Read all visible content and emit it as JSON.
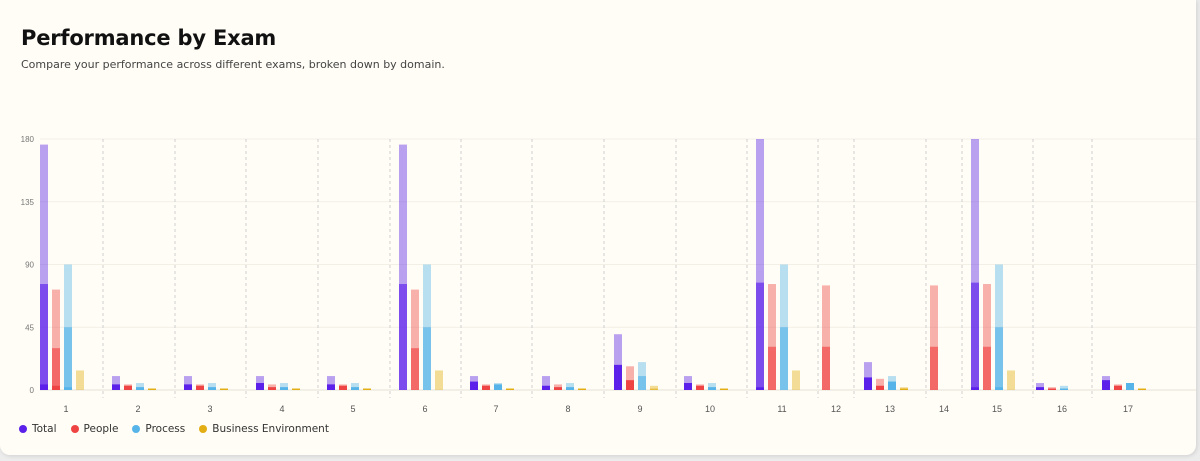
{
  "header": {
    "title": "Performance by Exam",
    "subtitle": "Compare your performance across different exams, broken down by domain."
  },
  "chart_data": {
    "type": "bar",
    "categories": [
      "1",
      "2",
      "3",
      "4",
      "5",
      "6",
      "7",
      "8",
      "9",
      "10",
      "11",
      "12",
      "13",
      "14",
      "15",
      "16",
      "17"
    ],
    "ylim": [
      0,
      180
    ],
    "yticks": [
      0,
      45,
      90,
      135,
      180
    ],
    "grid": true,
    "legend_position": "bottom-left",
    "series": [
      {
        "name": "Total",
        "color": "#5b21ea",
        "values": [
          4,
          4,
          4,
          5,
          4,
          0,
          6,
          3,
          18,
          5,
          2,
          0,
          9,
          0,
          2,
          2,
          7
        ],
        "secondary": [
          76,
          4,
          4,
          5,
          4,
          76,
          6,
          3,
          18,
          5,
          77,
          0,
          9,
          0,
          77,
          2,
          7
        ],
        "tertiary": [
          176,
          10,
          10,
          10,
          10,
          176,
          10,
          10,
          40,
          10,
          180,
          0,
          20,
          0,
          180,
          5,
          10
        ]
      },
      {
        "name": "People",
        "color": "#ef4444",
        "values": [
          3,
          3,
          3,
          2,
          3,
          0,
          3,
          2,
          7,
          3,
          0,
          0,
          3,
          0,
          0,
          1,
          3
        ],
        "secondary": [
          30,
          3,
          3,
          2,
          3,
          30,
          3,
          2,
          7,
          3,
          31,
          31,
          3,
          31,
          31,
          1,
          3
        ],
        "tertiary": [
          72,
          4,
          4,
          4,
          4,
          72,
          4,
          4,
          17,
          4,
          76,
          75,
          8,
          75,
          76,
          2,
          4
        ]
      },
      {
        "name": "Process",
        "color": "#56b4e9",
        "values": [
          2,
          2,
          2,
          2,
          2,
          0,
          4,
          2,
          0,
          2,
          0,
          0,
          6,
          0,
          2,
          1,
          5
        ],
        "secondary": [
          45,
          2,
          2,
          2,
          2,
          45,
          4,
          2,
          10,
          2,
          45,
          0,
          6,
          0,
          45,
          1,
          5
        ],
        "tertiary": [
          90,
          5,
          5,
          5,
          5,
          90,
          5,
          5,
          20,
          5,
          90,
          0,
          10,
          0,
          90,
          3,
          5
        ]
      },
      {
        "name": "Business Environment",
        "color": "#e3ad14",
        "values": [
          0,
          1,
          1,
          1,
          1,
          0,
          1,
          1,
          0,
          1,
          0,
          0,
          1,
          0,
          0,
          0,
          1
        ],
        "secondary": [
          0,
          1,
          1,
          1,
          1,
          0,
          1,
          1,
          1,
          1,
          0,
          0,
          1,
          0,
          0,
          0,
          1
        ],
        "tertiary": [
          14,
          1,
          1,
          1,
          1,
          14,
          1,
          1,
          3,
          1,
          14,
          0,
          2,
          0,
          14,
          0,
          1
        ]
      }
    ]
  },
  "legend": {
    "items": [
      {
        "label": "Total",
        "color": "#5b21ea"
      },
      {
        "label": "People",
        "color": "#ef4444"
      },
      {
        "label": "Process",
        "color": "#56b4e9"
      },
      {
        "label": "Business Environment",
        "color": "#e3ad14"
      }
    ]
  }
}
